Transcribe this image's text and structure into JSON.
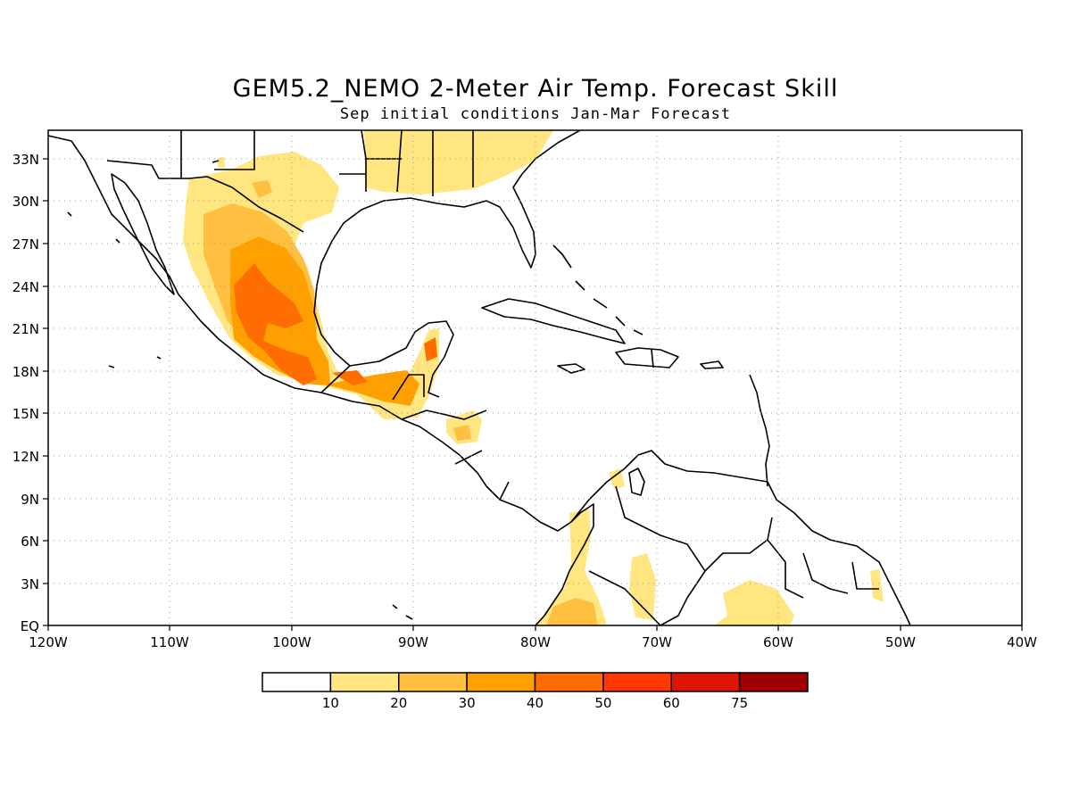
{
  "title": "GEM5.2_NEMO 2-Meter Air Temp. Forecast Skill",
  "subtitle": "Sep initial conditions  Jan-Mar Forecast",
  "map": {
    "lon_range": [
      -120,
      -40
    ],
    "lat_range": [
      0,
      35
    ],
    "x_ticks": [
      "120W",
      "110W",
      "100W",
      "90W",
      "80W",
      "70W",
      "60W",
      "50W",
      "40W"
    ],
    "y_ticks": [
      "EQ",
      "3N",
      "6N",
      "9N",
      "12N",
      "15N",
      "18N",
      "21N",
      "24N",
      "27N",
      "30N",
      "33N"
    ],
    "gridlines": true
  },
  "colorbar": {
    "labels": [
      "10",
      "20",
      "30",
      "40",
      "50",
      "60",
      "75"
    ],
    "colors": [
      "#ffffff",
      "#ffe680",
      "#ffbf40",
      "#ff9f00",
      "#ff6d00",
      "#ff3700",
      "#de1500",
      "#a00000"
    ]
  }
}
